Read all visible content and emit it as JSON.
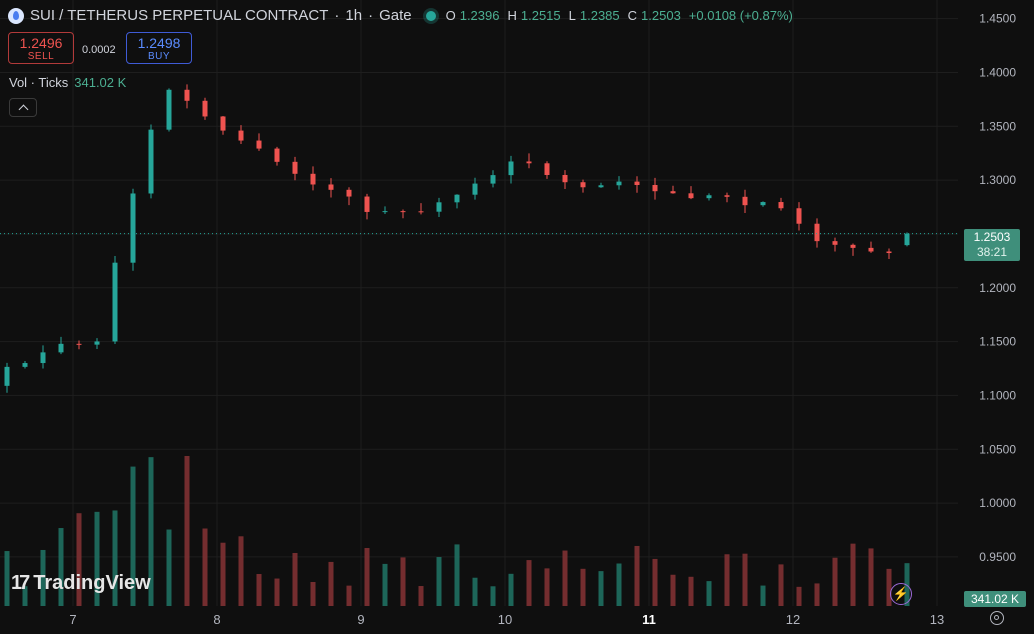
{
  "header": {
    "symbol": "SUI / TETHERUS PERPETUAL CONTRACT",
    "interval": "1h",
    "exchange": "Gate",
    "sep": "·",
    "ohlc": {
      "o_label": "O",
      "o": "1.2396",
      "h_label": "H",
      "h": "1.2515",
      "l_label": "L",
      "l": "1.2385",
      "c_label": "C",
      "c": "1.2503",
      "change": "+0.0108 (+0.87%)"
    }
  },
  "trade": {
    "sell_price": "1.2496",
    "sell_label": "SELL",
    "spread": "0.0002",
    "buy_price": "1.2498",
    "buy_label": "BUY"
  },
  "volume_indicator": {
    "label": "Vol · Ticks",
    "value": "341.02 K"
  },
  "logo": {
    "text": "TradingView",
    "mark": "17"
  },
  "badges": {
    "last_price": "1.2503",
    "countdown": "38:21",
    "last_volume": "341.02 K"
  },
  "icons": {
    "collapse": "chevron-up-icon",
    "settings": "gear-icon",
    "bolt": "lightning-icon",
    "symbol": "sui-coin-icon"
  },
  "colors": {
    "up": "#26a69a",
    "down": "#ef5350",
    "background": "#0f0f0f",
    "grid": "#1e1e1e",
    "text": "#d1d4dc"
  },
  "chart_data": {
    "type": "candlestick",
    "y_axis_ticks": [
      "1.4500",
      "1.4000",
      "1.3500",
      "1.3000",
      "1.2500",
      "1.2000",
      "1.1500",
      "1.1000",
      "1.0500",
      "1.0000",
      "0.9500"
    ],
    "ylim": [
      0.936,
      1.458
    ],
    "x_axis_ticks": [
      "7",
      "8",
      "9",
      "10",
      "11",
      "12",
      "13"
    ],
    "last_price": 1.2503,
    "grid": true,
    "volume_max": 341020
  }
}
